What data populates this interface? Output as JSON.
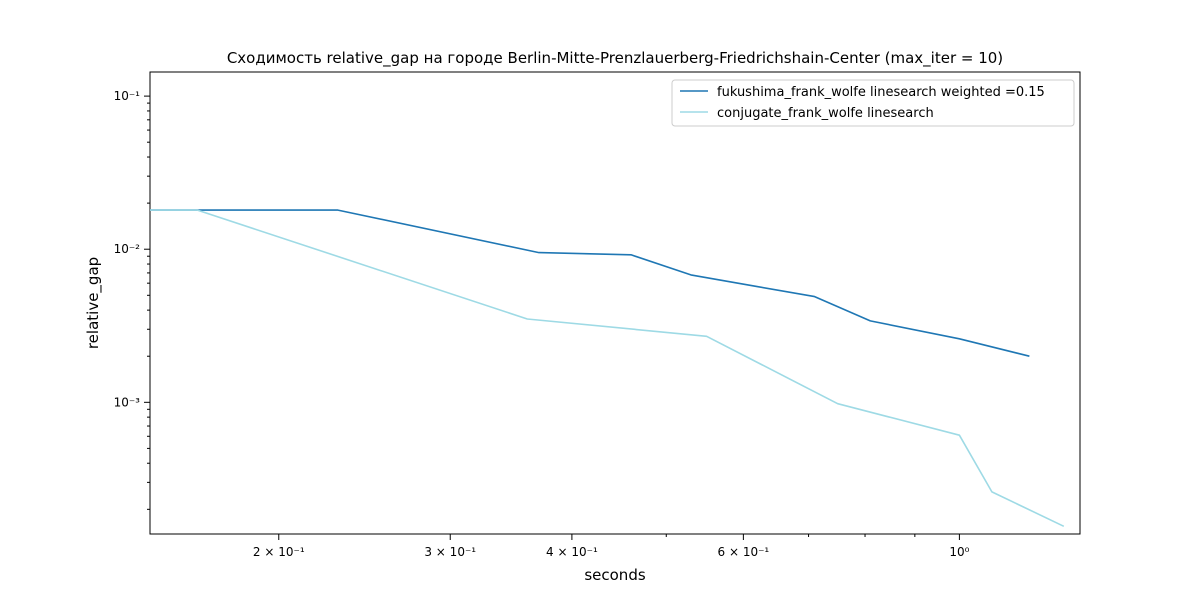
{
  "chart_data": {
    "type": "line",
    "title": "Сходимость relative_gap на городе Berlin-Mitte-Prenzlauerberg-Friedrichshain-Center  (max_iter = 10)",
    "xlabel": "seconds",
    "ylabel": "relative_gap",
    "xscale": "log",
    "yscale": "log",
    "xlim": [
      0.1475,
      1.33
    ],
    "ylim": [
      0.000138,
      0.1437
    ],
    "grid": false,
    "legend_position": "top-right",
    "x_ticks": [
      {
        "value": 0.2,
        "label": "2 × 10⁻¹"
      },
      {
        "value": 0.3,
        "label": "3 × 10⁻¹"
      },
      {
        "value": 0.4,
        "label": "4 × 10⁻¹"
      },
      {
        "value": 0.6,
        "label": "6 × 10⁻¹"
      },
      {
        "value": 1.0,
        "label": "10⁰"
      }
    ],
    "x_minor_ticks": [
      0.5,
      0.7,
      0.8,
      0.9
    ],
    "y_ticks": [
      {
        "value": 0.1,
        "label": "10⁻¹"
      },
      {
        "value": 0.01,
        "label": "10⁻²"
      },
      {
        "value": 0.001,
        "label": "10⁻³"
      }
    ],
    "y_minor_ticks": [
      0.0002,
      0.0003,
      0.0004,
      0.0005,
      0.0006,
      0.0007,
      0.0008,
      0.0009,
      0.002,
      0.003,
      0.004,
      0.005,
      0.006,
      0.007,
      0.008,
      0.009,
      0.02,
      0.03,
      0.04,
      0.05,
      0.06,
      0.07,
      0.08,
      0.09
    ],
    "series": [
      {
        "name": "fukushima_frank_wolfe linesearch weighted =0.15",
        "color": "#1f77b4",
        "x": [
          0.1475,
          0.23,
          0.37,
          0.46,
          0.53,
          0.62,
          0.71,
          0.81,
          1.0,
          1.18
        ],
        "y": [
          0.018,
          0.018,
          0.0095,
          0.0092,
          0.0068,
          0.0057,
          0.0049,
          0.0034,
          0.0026,
          0.002
        ]
      },
      {
        "name": "conjugate_frank_wolfe linesearch",
        "color": "#9edae5",
        "x": [
          0.1475,
          0.165,
          0.36,
          0.55,
          0.75,
          1.0,
          1.08,
          1.28
        ],
        "y": [
          0.018,
          0.018,
          0.0035,
          0.0027,
          0.00098,
          0.00061,
          0.00026,
          0.000155
        ]
      }
    ]
  }
}
